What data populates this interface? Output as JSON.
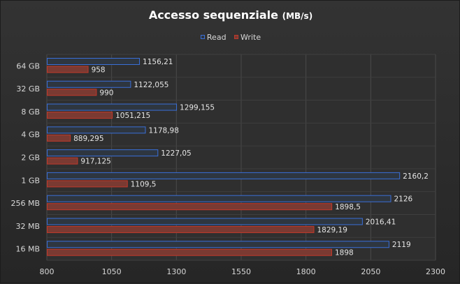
{
  "chart_data": {
    "type": "bar",
    "orientation": "horizontal",
    "title": "Accesso sequenziale",
    "title_unit": "(MB/s)",
    "categories": [
      "64 GB",
      "32 GB",
      "8 GB",
      "4 GB",
      "2 GB",
      "1 GB",
      "256 MB",
      "32 MB",
      "16 MB"
    ],
    "series": [
      {
        "name": "Read",
        "values": [
          1156.21,
          1122.055,
          1299.155,
          1178.98,
          1227.05,
          2160.2,
          2126,
          2016.41,
          2119
        ],
        "labels": [
          "1156,21",
          "1122,055",
          "1299,155",
          "1178,98",
          "1227,05",
          "2160,2",
          "2126",
          "2016,41",
          "2119"
        ],
        "color": "#3a6fd8",
        "fill": "#2e3640"
      },
      {
        "name": "Write",
        "values": [
          958,
          990,
          1051.215,
          889.295,
          917.125,
          1109.5,
          1898.5,
          1829.19,
          1898
        ],
        "labels": [
          "958",
          "990",
          "1051,215",
          "889,295",
          "917,125",
          "1109,5",
          "1898,5",
          "1829,19",
          "1898"
        ],
        "color": "#c0392b",
        "fill": "#7a3a32"
      }
    ],
    "xlim": [
      800,
      2300
    ],
    "xticks": [
      800,
      1050,
      1300,
      1550,
      1800,
      2050,
      2300
    ],
    "xtick_labels": [
      "800",
      "1050",
      "1300",
      "1550",
      "1800",
      "2050",
      "2300"
    ],
    "grid": true,
    "legend_position": "top"
  }
}
